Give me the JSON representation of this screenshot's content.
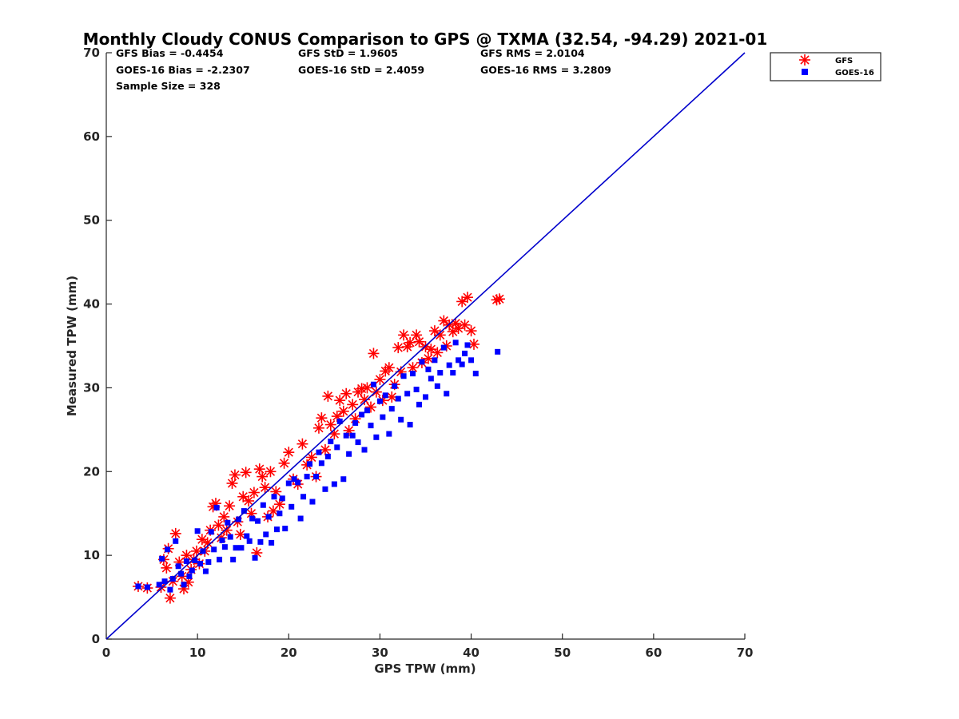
{
  "chart_data": {
    "type": "scatter",
    "title": "Monthly Cloudy CONUS Comparison to GPS @ TXMA (32.54, -94.29) 2021-01",
    "xlabel": "GPS TPW (mm)",
    "ylabel": "Measured TPW (mm)",
    "xlim": [
      0,
      70
    ],
    "ylim": [
      0,
      70
    ],
    "xticks": [
      0,
      10,
      20,
      30,
      40,
      50,
      60,
      70
    ],
    "yticks": [
      0,
      10,
      20,
      30,
      40,
      50,
      60,
      70
    ],
    "grid": false,
    "legend_position": "top-right-outside",
    "stats": {
      "gfs_bias": "GFS Bias = -0.4454",
      "goes_bias": "GOES-16 Bias = -2.2307",
      "sample_size": "Sample Size = 328",
      "gfs_std": "GFS StD = 1.9605",
      "goes_std": "GOES-16 StD = 2.4059",
      "gfs_rms": "GFS RMS = 2.0104",
      "goes_rms": "GOES-16 RMS = 3.2809"
    },
    "reference_line": {
      "name": "1:1",
      "color": "#0000cc",
      "x": [
        0,
        70
      ],
      "y": [
        0,
        70
      ]
    },
    "series": [
      {
        "name": "GFS",
        "marker": "asterisk",
        "color": "#ff0000",
        "points": [
          [
            3.5,
            6.3
          ],
          [
            4.5,
            6.1
          ],
          [
            6.0,
            6.2
          ],
          [
            6.3,
            9.5
          ],
          [
            6.6,
            8.5
          ],
          [
            6.8,
            10.8
          ],
          [
            7.0,
            4.9
          ],
          [
            7.3,
            6.9
          ],
          [
            7.6,
            12.6
          ],
          [
            8.0,
            9.2
          ],
          [
            8.3,
            7.5
          ],
          [
            8.5,
            6.0
          ],
          [
            8.8,
            10.0
          ],
          [
            9.0,
            6.8
          ],
          [
            9.3,
            8.3
          ],
          [
            9.6,
            9.5
          ],
          [
            9.9,
            10.5
          ],
          [
            10.2,
            9.0
          ],
          [
            10.5,
            11.9
          ],
          [
            10.8,
            10.5
          ],
          [
            11.1,
            11.5
          ],
          [
            11.4,
            13.0
          ],
          [
            11.7,
            15.8
          ],
          [
            12.0,
            16.2
          ],
          [
            12.3,
            13.6
          ],
          [
            12.6,
            12.1
          ],
          [
            12.9,
            14.6
          ],
          [
            13.2,
            13.0
          ],
          [
            13.5,
            15.9
          ],
          [
            13.8,
            18.6
          ],
          [
            14.1,
            19.6
          ],
          [
            14.4,
            14.0
          ],
          [
            14.7,
            12.5
          ],
          [
            15.0,
            17.0
          ],
          [
            15.3,
            19.9
          ],
          [
            15.6,
            16.5
          ],
          [
            15.9,
            15.0
          ],
          [
            16.2,
            17.5
          ],
          [
            16.5,
            10.3
          ],
          [
            16.8,
            20.3
          ],
          [
            17.1,
            19.4
          ],
          [
            17.4,
            18.1
          ],
          [
            17.7,
            14.6
          ],
          [
            18.0,
            20.0
          ],
          [
            18.3,
            15.3
          ],
          [
            18.6,
            17.6
          ],
          [
            19.0,
            16.1
          ],
          [
            19.5,
            21.0
          ],
          [
            20.0,
            22.3
          ],
          [
            20.5,
            19.1
          ],
          [
            21.0,
            18.5
          ],
          [
            21.5,
            23.3
          ],
          [
            22.0,
            20.8
          ],
          [
            22.5,
            21.7
          ],
          [
            23.0,
            19.4
          ],
          [
            23.3,
            25.2
          ],
          [
            23.6,
            26.4
          ],
          [
            24.0,
            22.6
          ],
          [
            24.3,
            29.0
          ],
          [
            24.6,
            25.6
          ],
          [
            25.0,
            24.5
          ],
          [
            25.3,
            26.6
          ],
          [
            25.6,
            28.5
          ],
          [
            26.0,
            27.2
          ],
          [
            26.3,
            29.3
          ],
          [
            26.6,
            24.9
          ],
          [
            27.0,
            28.0
          ],
          [
            27.3,
            26.3
          ],
          [
            27.6,
            29.5
          ],
          [
            28.0,
            29.9
          ],
          [
            28.3,
            28.6
          ],
          [
            28.6,
            30.0
          ],
          [
            29.0,
            27.7
          ],
          [
            29.3,
            34.1
          ],
          [
            29.6,
            29.5
          ],
          [
            30.0,
            31.0
          ],
          [
            30.3,
            28.5
          ],
          [
            30.6,
            32.0
          ],
          [
            31.0,
            32.4
          ],
          [
            31.3,
            28.9
          ],
          [
            31.6,
            30.4
          ],
          [
            32.0,
            34.8
          ],
          [
            32.3,
            31.9
          ],
          [
            32.6,
            36.3
          ],
          [
            33.0,
            34.9
          ],
          [
            33.3,
            35.4
          ],
          [
            33.6,
            32.4
          ],
          [
            34.0,
            36.3
          ],
          [
            34.3,
            35.5
          ],
          [
            34.6,
            33.0
          ],
          [
            35.0,
            34.9
          ],
          [
            35.3,
            33.5
          ],
          [
            35.6,
            34.6
          ],
          [
            36.0,
            36.8
          ],
          [
            36.3,
            34.2
          ],
          [
            36.6,
            36.3
          ],
          [
            37.0,
            38.0
          ],
          [
            37.3,
            35.0
          ],
          [
            37.6,
            37.5
          ],
          [
            38.0,
            36.7
          ],
          [
            38.3,
            37.7
          ],
          [
            38.6,
            37.1
          ],
          [
            39.0,
            40.3
          ],
          [
            39.3,
            37.5
          ],
          [
            39.6,
            40.8
          ],
          [
            40.0,
            36.8
          ],
          [
            40.3,
            35.2
          ],
          [
            42.8,
            40.5
          ],
          [
            43.1,
            40.6
          ]
        ]
      },
      {
        "name": "GOES-16",
        "marker": "square",
        "color": "#0000ff",
        "points": [
          [
            3.5,
            6.3
          ],
          [
            4.5,
            6.2
          ],
          [
            5.8,
            6.5
          ],
          [
            6.1,
            9.6
          ],
          [
            6.4,
            6.9
          ],
          [
            6.7,
            10.7
          ],
          [
            7.0,
            5.9
          ],
          [
            7.3,
            7.2
          ],
          [
            7.6,
            11.7
          ],
          [
            7.9,
            8.7
          ],
          [
            8.2,
            7.8
          ],
          [
            8.5,
            6.5
          ],
          [
            8.8,
            9.3
          ],
          [
            9.1,
            7.5
          ],
          [
            9.4,
            8.2
          ],
          [
            9.7,
            9.4
          ],
          [
            10.0,
            12.9
          ],
          [
            10.3,
            9.0
          ],
          [
            10.6,
            10.5
          ],
          [
            10.9,
            8.1
          ],
          [
            11.2,
            9.2
          ],
          [
            11.5,
            12.8
          ],
          [
            11.8,
            10.7
          ],
          [
            12.1,
            15.7
          ],
          [
            12.4,
            9.5
          ],
          [
            12.7,
            11.8
          ],
          [
            13.0,
            11.0
          ],
          [
            13.3,
            13.9
          ],
          [
            13.6,
            12.2
          ],
          [
            13.9,
            9.5
          ],
          [
            14.2,
            10.9
          ],
          [
            14.5,
            14.3
          ],
          [
            14.8,
            10.9
          ],
          [
            15.1,
            15.3
          ],
          [
            15.4,
            12.3
          ],
          [
            15.7,
            11.7
          ],
          [
            16.0,
            14.4
          ],
          [
            16.3,
            9.7
          ],
          [
            16.6,
            14.1
          ],
          [
            16.9,
            11.6
          ],
          [
            17.2,
            16.0
          ],
          [
            17.5,
            12.5
          ],
          [
            17.8,
            14.6
          ],
          [
            18.1,
            11.5
          ],
          [
            18.4,
            17.0
          ],
          [
            18.7,
            13.1
          ],
          [
            19.0,
            15.0
          ],
          [
            19.3,
            16.8
          ],
          [
            19.6,
            13.2
          ],
          [
            20.0,
            18.6
          ],
          [
            20.3,
            15.8
          ],
          [
            20.6,
            19.1
          ],
          [
            21.0,
            18.7
          ],
          [
            21.3,
            14.4
          ],
          [
            21.6,
            17.0
          ],
          [
            22.0,
            19.4
          ],
          [
            22.3,
            20.9
          ],
          [
            22.6,
            16.4
          ],
          [
            23.0,
            19.4
          ],
          [
            23.3,
            22.3
          ],
          [
            23.6,
            21.0
          ],
          [
            24.0,
            17.9
          ],
          [
            24.3,
            21.8
          ],
          [
            24.6,
            23.6
          ],
          [
            25.0,
            18.5
          ],
          [
            25.3,
            22.9
          ],
          [
            25.6,
            26.0
          ],
          [
            26.0,
            19.1
          ],
          [
            26.3,
            24.3
          ],
          [
            26.6,
            22.1
          ],
          [
            27.0,
            24.3
          ],
          [
            27.3,
            25.8
          ],
          [
            27.6,
            23.5
          ],
          [
            28.0,
            26.8
          ],
          [
            28.3,
            22.6
          ],
          [
            28.6,
            27.3
          ],
          [
            29.0,
            25.5
          ],
          [
            29.3,
            30.4
          ],
          [
            29.6,
            24.1
          ],
          [
            30.0,
            28.4
          ],
          [
            30.3,
            26.5
          ],
          [
            30.6,
            29.1
          ],
          [
            31.0,
            24.5
          ],
          [
            31.3,
            27.5
          ],
          [
            31.6,
            30.2
          ],
          [
            32.0,
            28.7
          ],
          [
            32.3,
            26.2
          ],
          [
            32.6,
            31.4
          ],
          [
            33.0,
            29.3
          ],
          [
            33.3,
            25.6
          ],
          [
            33.6,
            31.7
          ],
          [
            34.0,
            29.8
          ],
          [
            34.3,
            28.0
          ],
          [
            34.6,
            33.1
          ],
          [
            35.0,
            28.9
          ],
          [
            35.3,
            32.2
          ],
          [
            35.6,
            31.1
          ],
          [
            36.0,
            33.3
          ],
          [
            36.3,
            30.2
          ],
          [
            36.6,
            31.8
          ],
          [
            37.0,
            34.8
          ],
          [
            37.3,
            29.3
          ],
          [
            37.6,
            32.7
          ],
          [
            38.0,
            31.8
          ],
          [
            38.3,
            35.4
          ],
          [
            38.6,
            33.3
          ],
          [
            39.0,
            32.8
          ],
          [
            39.3,
            34.1
          ],
          [
            39.6,
            35.1
          ],
          [
            40.0,
            33.3
          ],
          [
            40.5,
            31.7
          ],
          [
            42.9,
            34.3
          ]
        ]
      }
    ]
  }
}
